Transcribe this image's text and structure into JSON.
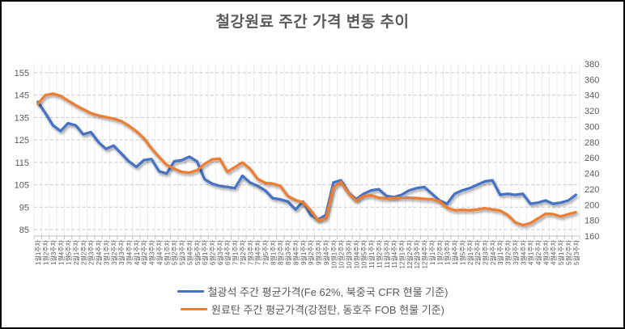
{
  "title": "철강원료 주간 가격 변동 추이",
  "colors": {
    "title_text": "#595959",
    "axis_text": "#595959",
    "vertical_gridline": "#ebebeb",
    "horizontal_gridline": "#c9c9c9",
    "axis_line": "#bfbfbf",
    "series_iron_ore": "#4472c4",
    "series_coking_coal": "#ed7d31"
  },
  "chart_data": {
    "type": "line",
    "title": "철강원료 주간 가격 변동 추이",
    "legend_position": "bottom",
    "grid": {
      "horizontal": "dashed",
      "vertical": "solid"
    },
    "left_axis": {
      "min": 85,
      "max": 155,
      "step": 10,
      "ticks": [
        155,
        145,
        135,
        125,
        115,
        105,
        95,
        85
      ]
    },
    "right_axis": {
      "min": 160,
      "max": 380,
      "step": 20,
      "ticks": [
        380,
        360,
        340,
        320,
        300,
        280,
        260,
        240,
        220,
        200,
        180,
        160
      ]
    },
    "categories": [
      "1월1주차",
      "1월2주차",
      "1월3주차",
      "1월4주차",
      "1월5주차",
      "2월1주차",
      "2월2주차",
      "2월3주차",
      "2월4주차",
      "3월1주차",
      "3월2주차",
      "3월3주차",
      "3월4주차",
      "4월1주차",
      "4월2주차",
      "4월3주차",
      "4월4주차",
      "5월1주차",
      "5월2주차",
      "5월3주차",
      "5월4주차",
      "5월5주차",
      "6월1주차",
      "6월2주차",
      "6월3주차",
      "6월4주차",
      "7월1주차",
      "7월2주차",
      "7월3주차",
      "7월4주차",
      "7월5주차",
      "8월1주차",
      "8월2주차",
      "8월3주차",
      "8월4주차",
      "9월1주차",
      "9월2주차",
      "9월3주차",
      "9월4주차",
      "10월1주차",
      "10월2주차",
      "10월3주차",
      "10월4주차",
      "10월5주차",
      "11월1주차",
      "11월2주차",
      "11월3주차",
      "11월4주차",
      "12월1주차",
      "12월2주차",
      "12월3주차",
      "12월4주차",
      "1월1주차",
      "1월2주차",
      "1월3주차",
      "1월4주차",
      "1월5주차",
      "2월1주차",
      "2월2주차",
      "2월3주차",
      "2월4주차",
      "3월1주차",
      "3월2주차",
      "3월3주차",
      "3월4주차",
      "4월1주차",
      "4월2주차",
      "4월3주차",
      "4월4주차",
      "5월1주차",
      "5월2주차",
      "5월3주차"
    ],
    "series": [
      {
        "name": "철광석 주간 평균가격(Fe 62%, 북중국 CFR 현물 기준)",
        "name_key": "iron-ore-line",
        "axis": "left",
        "color": "#4472c4",
        "values": [
          142,
          137,
          131.5,
          129,
          132.5,
          131.5,
          127.5,
          128.5,
          124,
          121,
          122.5,
          119,
          115.5,
          113,
          116,
          116.5,
          111,
          110,
          115.5,
          116,
          117.5,
          115.5,
          107.5,
          105.5,
          104.5,
          104,
          103.5,
          109,
          106,
          104.5,
          102.5,
          99,
          98.5,
          97.5,
          94,
          97.5,
          91.5,
          89.5,
          91.5,
          106,
          107,
          101.5,
          98.5,
          101,
          102.5,
          103,
          100,
          99.5,
          100.5,
          102.5,
          103.5,
          104,
          101,
          98,
          96.5,
          101,
          102.5,
          103.5,
          105,
          106.5,
          107,
          100.5,
          101,
          100.5,
          101,
          96.5,
          97,
          98,
          96.5,
          97,
          98,
          100.5
        ]
      },
      {
        "name": "원료탄 주간 평균가격(강점탄, 동호주 FOB 현물 기준)",
        "name_key": "coking-coal-line",
        "axis": "right",
        "color": "#ed7d31",
        "values": [
          329,
          340,
          342,
          339,
          333,
          327,
          322,
          317,
          314,
          312,
          310,
          307,
          301,
          294,
          285,
          272,
          261,
          251,
          246,
          242,
          241,
          244,
          252,
          258,
          259,
          242,
          248,
          254,
          246,
          233,
          228,
          227,
          224,
          211,
          206,
          203,
          193,
          180,
          182,
          222,
          229,
          215,
          205,
          211,
          212,
          209,
          208,
          208.5,
          209,
          209,
          208.5,
          207.5,
          207,
          204.5,
          196,
          193,
          193.5,
          193,
          194,
          195.5,
          194,
          192.5,
          187,
          177.5,
          174,
          176.5,
          182.5,
          188.5,
          188,
          185,
          188,
          190.5
        ]
      }
    ]
  }
}
